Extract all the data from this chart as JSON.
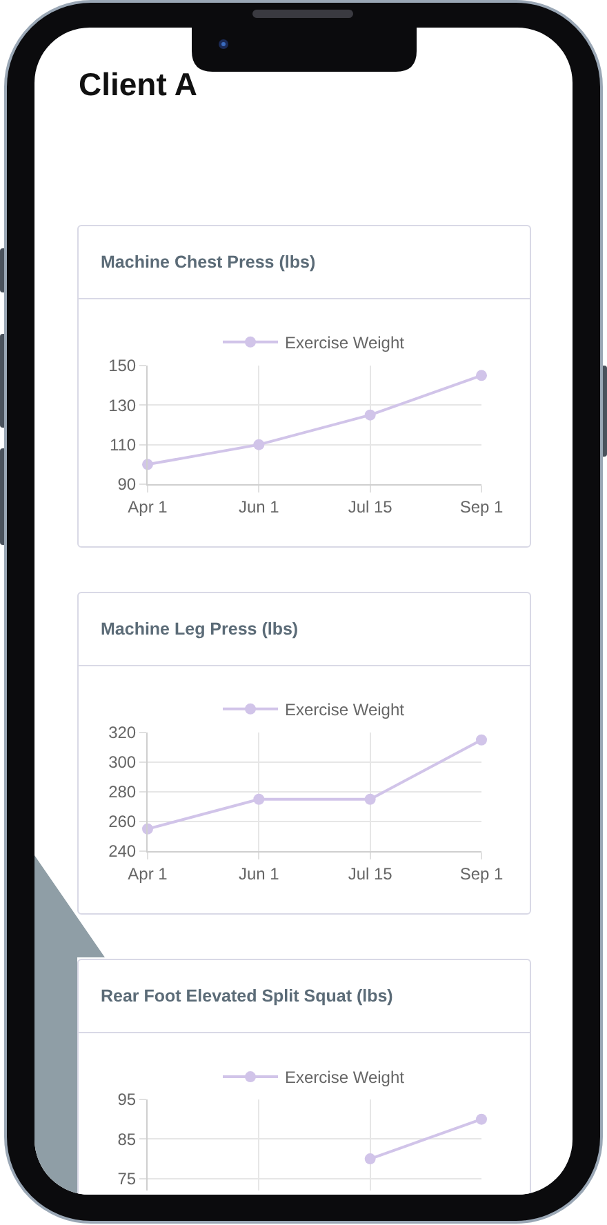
{
  "chart_data": [
    {
      "type": "other",
      "title": "Client A"
    },
    {
      "type": "line",
      "title": "Machine Chest Press (lbs)",
      "categories": [
        "Apr 1",
        "Jun 1",
        "Jul 15",
        "Sep 1"
      ],
      "series": [
        {
          "name": "Exercise Weight",
          "color": "#d1c4e9",
          "values": [
            100,
            110,
            125,
            145
          ]
        }
      ],
      "ylim": [
        90,
        150
      ],
      "yticks": [
        90,
        110,
        130,
        150
      ],
      "grid": true,
      "legend": "top",
      "marker": "circle",
      "line_style": "solid"
    },
    {
      "type": "line",
      "title": "Machine Leg Press (lbs)",
      "categories": [
        "Apr 1",
        "Jun 1",
        "Jul 15",
        "Sep 1"
      ],
      "series": [
        {
          "name": "Exercise Weight",
          "color": "#d1c4e9",
          "values": [
            255,
            275,
            275,
            315
          ]
        }
      ],
      "ylim": [
        240,
        320
      ],
      "yticks": [
        240,
        260,
        280,
        300,
        320
      ],
      "grid": true,
      "legend": "top",
      "marker": "circle",
      "line_style": "solid"
    },
    {
      "type": "line",
      "title": "Rear Foot Elevated Split Squat (lbs)",
      "categories": [
        null,
        null,
        null,
        null
      ],
      "series": [
        {
          "name": "Exercise Weight",
          "color": "#d1c4e9",
          "values": [
            null,
            null,
            80,
            90
          ]
        }
      ],
      "ylim": [
        72,
        95
      ],
      "yticks": [
        75,
        85,
        95
      ],
      "grid": true,
      "legend": "top",
      "marker": "circle",
      "line_style": "solid",
      "tick_labels": "y"
    }
  ]
}
